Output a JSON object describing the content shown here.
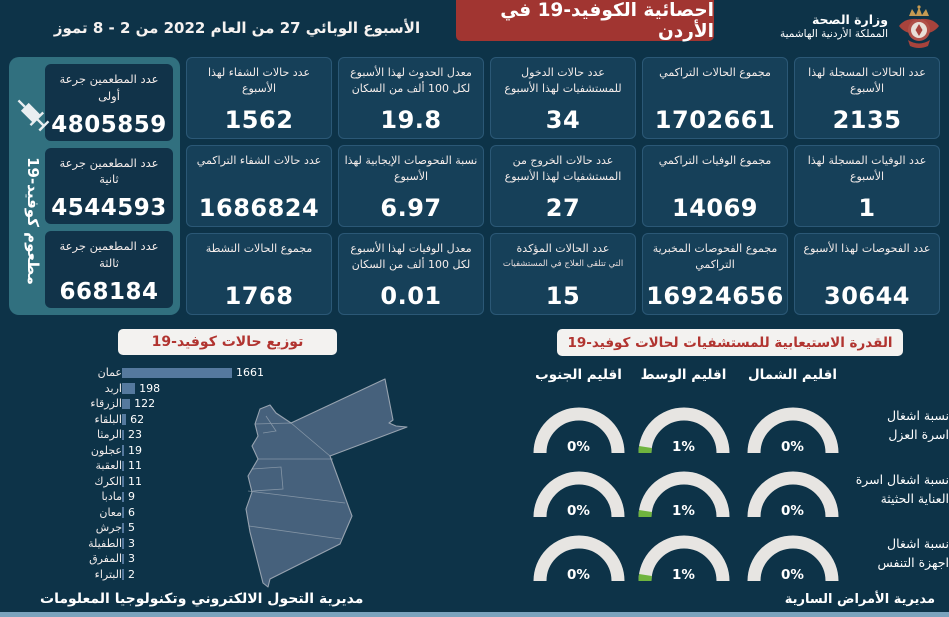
{
  "header": {
    "week_label": "الأسبوع الوبائي  27 من العام 2022 من  2 - 8 تموز",
    "title": "احصائية الكوفيد-19 في الأردن",
    "ministry_name": "وزارة الصحة",
    "kingdom_name": "المملكة الأردنية الهاشمية"
  },
  "colors": {
    "background": "#0d3348",
    "card_bg": "#164059",
    "accent_red": "#a13531",
    "panel_teal": "#31707f",
    "bar_blue": "#55799e",
    "gauge_track": "#e7e5e2",
    "gauge_green": "#6fb43e",
    "map_fill": "#46617c",
    "bottom_strip": "#7ba3bd"
  },
  "vaccination": {
    "side_label": "مطعوم كوفيد-19",
    "icon": "syringe-icon",
    "cards": [
      {
        "label": "عدد المطعمين جرعة أولى",
        "value": "4805859"
      },
      {
        "label": "عدد المطعمين جرعة ثانية",
        "value": "4544593"
      },
      {
        "label": "عدد المطعمين جرعة ثالثة",
        "value": "668184"
      }
    ]
  },
  "stats": {
    "columns": [
      {
        "cards": [
          {
            "label": "عدد الحالات المسجلة لهذا الأسبوع",
            "value": "2135"
          },
          {
            "label": "عدد الوفيات المسجلة لهذا الأسبوع",
            "value": "1"
          },
          {
            "label": "عدد الفحوصات لهذا الأسبوع",
            "value": "30644"
          }
        ]
      },
      {
        "cards": [
          {
            "label": "مجموع الحالات التراكمي",
            "value": "1702661"
          },
          {
            "label": "مجموع الوفيات التراكمي",
            "value": "14069"
          },
          {
            "label": "مجموع الفحوصات المخبرية التراكمي",
            "value": "16924656"
          }
        ]
      },
      {
        "cards": [
          {
            "label": "عدد حالات الدخول للمستشفيات لهذا الأسبوع",
            "value": "34"
          },
          {
            "label": "عدد حالات الخروج من المستشفيات لهذا الأسبوع",
            "value": "27"
          },
          {
            "label": "عدد الحالات المؤكدة",
            "sublabel": "التي تتلقى العلاج في المستشفيات",
            "value": "15"
          }
        ]
      },
      {
        "cards": [
          {
            "label": "معدل الحدوث لهذا الأسبوع لكل 100 ألف من السكان",
            "value": "19.8"
          },
          {
            "label": "نسبة الفحوصات الإيجابية لهذا الأسبوع",
            "value": "6.97"
          },
          {
            "label": "معدل الوفيات لهذا الأسبوع لكل 100 ألف من السكان",
            "value": "0.01"
          }
        ]
      },
      {
        "cards": [
          {
            "label": "عدد حالات الشفاء لهذا الأسبوع",
            "value": "1562"
          },
          {
            "label": "عدد حالات الشفاء التراكمي",
            "value": "1686824"
          },
          {
            "label": "مجموع الحالات النشطة",
            "value": "1768"
          }
        ]
      }
    ]
  },
  "chart_data": {
    "type": "bar",
    "title": "توزيع حالات كوفيد-19",
    "orientation": "horizontal",
    "categories": [
      "عمان",
      "اربد",
      "الزرقاء",
      "البلقاء",
      "الرمثا",
      "عجلون",
      "العقبة",
      "الكرك",
      "مادبا",
      "معان",
      "جرش",
      "الطفيلة",
      "المفرق",
      "البتراء"
    ],
    "values": [
      1661,
      198,
      122,
      62,
      23,
      19,
      11,
      11,
      9,
      6,
      5,
      3,
      3,
      2
    ],
    "xlabel": "",
    "ylabel": "",
    "xlim": [
      0,
      1661
    ],
    "grid": false,
    "data_labels": true
  },
  "hospital_capacity": {
    "title": "القدرة الاستيعابية للمستشفيات لحالات كوفيد-19",
    "regions": [
      "اقليم الشمال",
      "اقليم الوسط",
      "اقليم الجنوب"
    ],
    "rows": [
      {
        "label": "نسبة اشغال\nاسرة العزل",
        "values": [
          {
            "display": "0%",
            "pct": 0
          },
          {
            "display": "1%",
            "pct": 1
          },
          {
            "display": "0%",
            "pct": 0
          }
        ]
      },
      {
        "label": "نسبة اشغال اسرة\nالعناية الحثيثة",
        "values": [
          {
            "display": "0%",
            "pct": 0
          },
          {
            "display": "1%",
            "pct": 1
          },
          {
            "display": "0%",
            "pct": 0
          }
        ]
      },
      {
        "label": "نسبة اشغال\nاجهزة التنفس",
        "values": [
          {
            "display": "0%",
            "pct": 0
          },
          {
            "display": "1%",
            "pct": 1
          },
          {
            "display": "0%",
            "pct": 0
          }
        ]
      }
    ]
  },
  "footer": {
    "left": "مديرية التحول الالكتروني وتكنولوجيا المعلومات",
    "right": "مديرية الأمراض السارية"
  }
}
